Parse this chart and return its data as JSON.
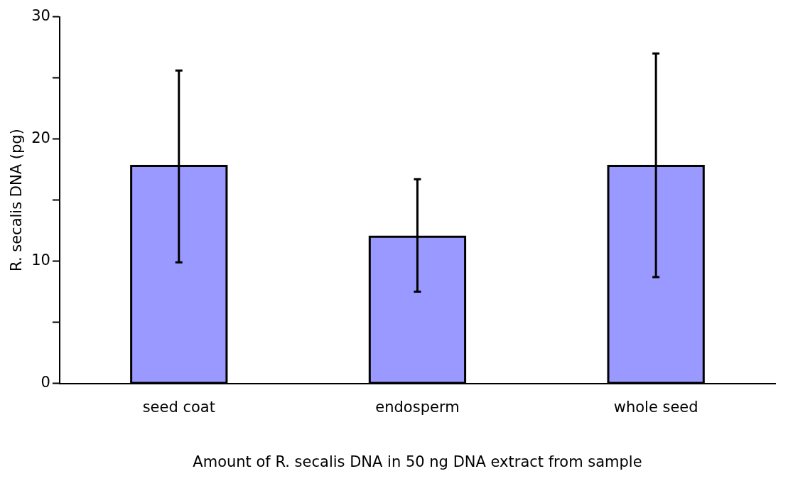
{
  "chart_data": {
    "type": "bar",
    "xlabel": "Amount of R. secalis DNA in 50 ng DNA extract from sample",
    "ylabel": "R. secalis DNA (pg)",
    "categories": [
      "seed coat",
      "endosperm",
      "whole seed"
    ],
    "values": [
      17.8,
      12.0,
      17.8
    ],
    "errors": [
      [
        9.9,
        25.6
      ],
      [
        7.5,
        16.7
      ],
      [
        8.7,
        27.0
      ]
    ],
    "color": "#9999ff",
    "ylim": [
      0,
      30
    ],
    "yticks": [
      0,
      {
        "value": 5,
        "label": null
      },
      10,
      {
        "value": 15,
        "label": null
      },
      20,
      {
        "value": 25,
        "label": null
      },
      30
    ],
    "grid": false,
    "legend": false
  }
}
